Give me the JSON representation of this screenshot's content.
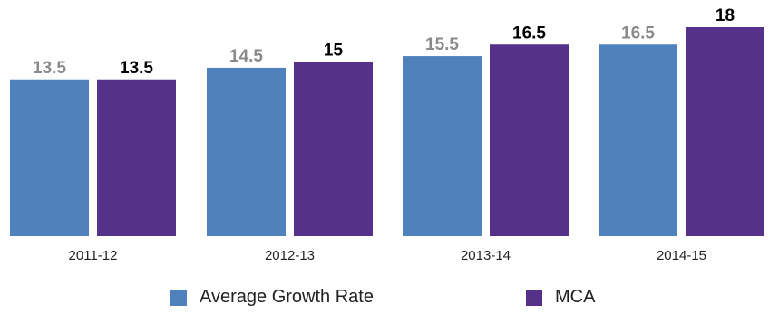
{
  "chart_data": {
    "type": "bar",
    "categories": [
      "2011-12",
      "2012-13",
      "2013-14",
      "2014-15"
    ],
    "series": [
      {
        "name": "Average Growth Rate",
        "values": [
          13.5,
          14.5,
          15.5,
          16.5
        ],
        "color": "#4f81bd",
        "label_color": "#8a8a8a"
      },
      {
        "name": "MCA",
        "values": [
          13.5,
          15,
          16.5,
          18
        ],
        "color": "#56318a",
        "label_color": "#000000"
      }
    ],
    "value_labels": [
      [
        "13.5",
        "14.5",
        "15.5",
        "16.5"
      ],
      [
        "13.5",
        "15",
        "16.5",
        "18"
      ]
    ],
    "ylim": [
      0,
      18
    ],
    "grid": false,
    "legend_position": "bottom"
  }
}
